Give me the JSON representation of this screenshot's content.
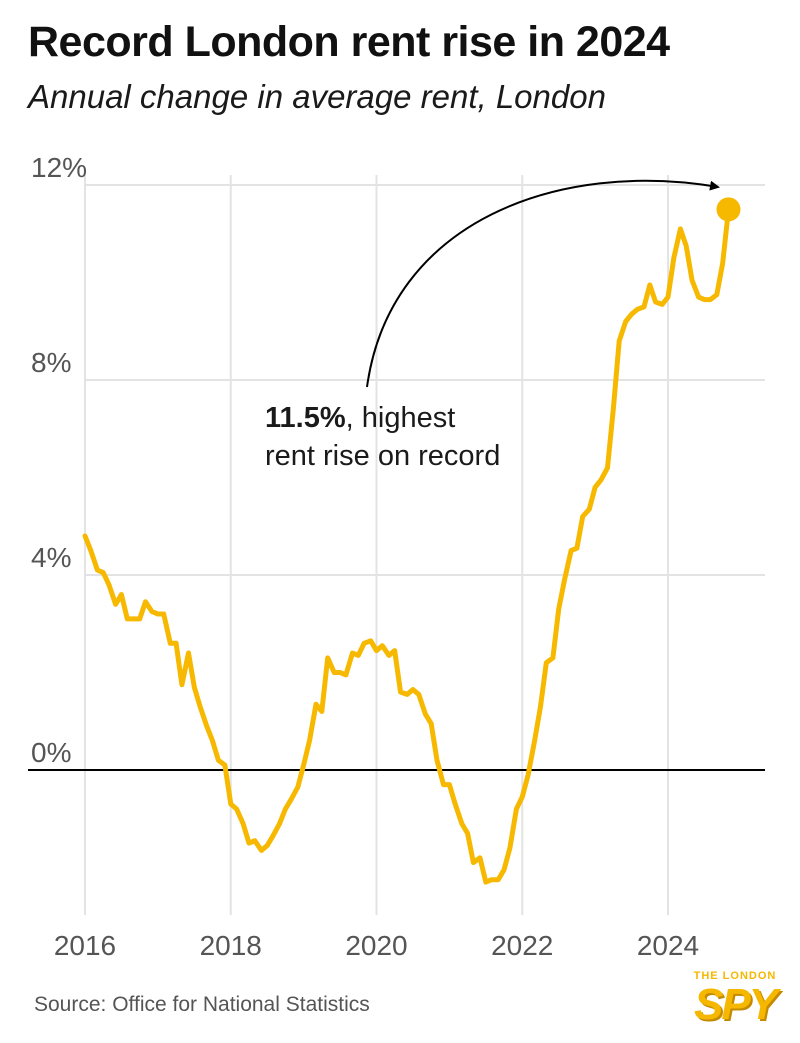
{
  "header": {
    "title": "Record London rent rise in 2024",
    "subtitle": "Annual change in average rent, London"
  },
  "annotation": {
    "bold": "11.5%",
    "line1_rest": ", highest",
    "line2": "rent rise on record"
  },
  "source": "Source: Office for National Statistics",
  "logo": {
    "small_text": "THE LONDON",
    "main_text": "SPY"
  },
  "colors": {
    "line": "#f7b800",
    "grid": "#e3e3e3",
    "zero_line": "#000000",
    "axis_text": "#555555"
  },
  "chart_data": {
    "type": "line",
    "title": "Record London rent rise in 2024",
    "subtitle": "Annual change in average rent, London",
    "xlabel": "",
    "ylabel": "",
    "x_ticks": [
      2016,
      2018,
      2020,
      2022,
      2024
    ],
    "y_ticks": [
      0,
      4,
      8,
      12
    ],
    "y_tick_labels": [
      "0%",
      "4%",
      "8%",
      "12%"
    ],
    "xlim": [
      2016,
      2025.3
    ],
    "ylim": [
      -2.8,
      12
    ],
    "grid": "vertical and horizontal",
    "legend": "none",
    "series": [
      {
        "points": [
          [
            2016.0,
            4.8
          ],
          [
            2016.08,
            4.5
          ],
          [
            2016.17,
            4.1
          ],
          [
            2016.25,
            4.05
          ],
          [
            2016.33,
            3.8
          ],
          [
            2016.42,
            3.4
          ],
          [
            2016.5,
            3.6
          ],
          [
            2016.58,
            3.1
          ],
          [
            2016.67,
            3.1
          ],
          [
            2016.75,
            3.1
          ],
          [
            2016.83,
            3.45
          ],
          [
            2016.92,
            3.25
          ],
          [
            2017.0,
            3.2
          ],
          [
            2017.08,
            3.2
          ],
          [
            2017.17,
            2.6
          ],
          [
            2017.25,
            2.6
          ],
          [
            2017.33,
            1.75
          ],
          [
            2017.42,
            2.4
          ],
          [
            2017.5,
            1.7
          ],
          [
            2017.58,
            1.3
          ],
          [
            2017.67,
            0.9
          ],
          [
            2017.75,
            0.6
          ],
          [
            2017.83,
            0.2
          ],
          [
            2017.92,
            0.1
          ],
          [
            2018.0,
            -0.7
          ],
          [
            2018.08,
            -0.8
          ],
          [
            2018.17,
            -1.1
          ],
          [
            2018.25,
            -1.5
          ],
          [
            2018.33,
            -1.45
          ],
          [
            2018.42,
            -1.65
          ],
          [
            2018.5,
            -1.55
          ],
          [
            2018.58,
            -1.35
          ],
          [
            2018.67,
            -1.1
          ],
          [
            2018.75,
            -0.8
          ],
          [
            2018.83,
            -0.6
          ],
          [
            2018.92,
            -0.35
          ],
          [
            2019.0,
            0.1
          ],
          [
            2019.08,
            0.6
          ],
          [
            2019.17,
            1.35
          ],
          [
            2019.25,
            1.2
          ],
          [
            2019.33,
            2.3
          ],
          [
            2019.42,
            2.0
          ],
          [
            2019.5,
            2.0
          ],
          [
            2019.58,
            1.95
          ],
          [
            2019.67,
            2.4
          ],
          [
            2019.75,
            2.35
          ],
          [
            2019.83,
            2.6
          ],
          [
            2019.92,
            2.65
          ],
          [
            2020.0,
            2.45
          ],
          [
            2020.08,
            2.55
          ],
          [
            2020.17,
            2.35
          ],
          [
            2020.25,
            2.45
          ],
          [
            2020.33,
            1.6
          ],
          [
            2020.42,
            1.55
          ],
          [
            2020.5,
            1.65
          ],
          [
            2020.58,
            1.55
          ],
          [
            2020.67,
            1.15
          ],
          [
            2020.75,
            0.95
          ],
          [
            2020.83,
            0.2
          ],
          [
            2020.92,
            -0.3
          ],
          [
            2021.0,
            -0.3
          ],
          [
            2021.08,
            -0.7
          ],
          [
            2021.17,
            -1.1
          ],
          [
            2021.25,
            -1.3
          ],
          [
            2021.33,
            -1.9
          ],
          [
            2021.42,
            -1.8
          ],
          [
            2021.5,
            -2.3
          ],
          [
            2021.58,
            -2.25
          ],
          [
            2021.67,
            -2.25
          ],
          [
            2021.75,
            -2.05
          ],
          [
            2021.83,
            -1.6
          ],
          [
            2021.92,
            -0.8
          ],
          [
            2022.0,
            -0.55
          ],
          [
            2022.08,
            -0.1
          ],
          [
            2022.17,
            0.6
          ],
          [
            2022.25,
            1.3
          ],
          [
            2022.33,
            2.2
          ],
          [
            2022.42,
            2.3
          ],
          [
            2022.5,
            3.3
          ],
          [
            2022.58,
            3.9
          ],
          [
            2022.67,
            4.5
          ],
          [
            2022.75,
            4.55
          ],
          [
            2022.83,
            5.2
          ],
          [
            2022.92,
            5.35
          ],
          [
            2023.0,
            5.8
          ],
          [
            2023.08,
            5.95
          ],
          [
            2023.17,
            6.2
          ],
          [
            2023.25,
            7.4
          ],
          [
            2023.33,
            8.8
          ],
          [
            2023.42,
            9.2
          ],
          [
            2023.5,
            9.35
          ],
          [
            2023.58,
            9.45
          ],
          [
            2023.67,
            9.5
          ],
          [
            2023.75,
            9.95
          ],
          [
            2023.83,
            9.6
          ],
          [
            2023.92,
            9.55
          ],
          [
            2024.0,
            9.7
          ],
          [
            2024.08,
            10.5
          ],
          [
            2024.17,
            11.1
          ],
          [
            2024.25,
            10.75
          ],
          [
            2024.33,
            10.05
          ],
          [
            2024.42,
            9.7
          ],
          [
            2024.5,
            9.65
          ],
          [
            2024.58,
            9.65
          ],
          [
            2024.67,
            9.75
          ],
          [
            2024.75,
            10.4
          ],
          [
            2024.83,
            11.5
          ]
        ]
      }
    ],
    "highlight": {
      "x": 2024.83,
      "y": 11.5,
      "label": "11.5%"
    }
  }
}
